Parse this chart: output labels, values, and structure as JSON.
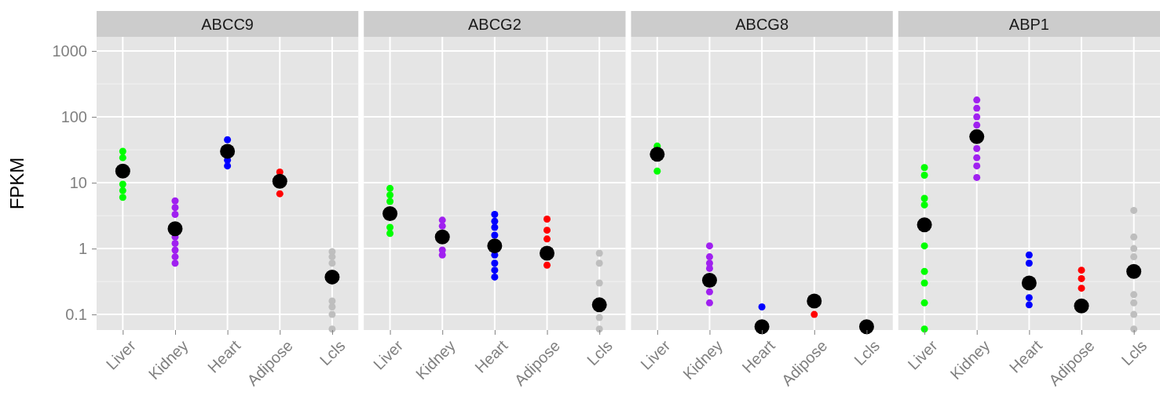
{
  "chart_data": [
    {
      "type": "scatter",
      "title": "ABCC9",
      "ylabel": "FPKM",
      "categories": [
        "Liver",
        "Kidney",
        "Heart",
        "Adipose",
        "Lcls"
      ],
      "log": true,
      "ylim": [
        0.058,
        1640
      ],
      "yticks": [
        0.1,
        1,
        10,
        100,
        1000
      ],
      "grid": true,
      "marker": "circle",
      "series": [
        {
          "color": "#00ff00",
          "x": [
            "Liver",
            "Liver",
            "Liver",
            "Liver",
            "Liver"
          ],
          "values": [
            6,
            7.6,
            9.5,
            24,
            30
          ]
        },
        {
          "color": "#a020f0",
          "x": [
            "Kidney",
            "Kidney",
            "Kidney",
            "Kidney",
            "Kidney",
            "Kidney",
            "Kidney",
            "Kidney"
          ],
          "values": [
            0.6,
            0.75,
            0.95,
            1.2,
            1.5,
            3.3,
            4.2,
            5.3
          ]
        },
        {
          "color": "#0000ff",
          "x": [
            "Heart",
            "Heart",
            "Heart"
          ],
          "values": [
            18,
            22,
            45
          ]
        },
        {
          "color": "#ff0000",
          "x": [
            "Adipose",
            "Adipose"
          ],
          "values": [
            6.8,
            14.5
          ]
        },
        {
          "color": "#bebebe",
          "x": [
            "Lcls",
            "Lcls",
            "Lcls",
            "Lcls",
            "Lcls",
            "Lcls",
            "Lcls"
          ],
          "values": [
            0.06,
            0.1,
            0.13,
            0.16,
            0.6,
            0.75,
            0.9
          ]
        },
        {
          "color": "#000000",
          "x": [
            "Liver",
            "Kidney",
            "Heart",
            "Adipose",
            "Lcls"
          ],
          "values": [
            15,
            2,
            30,
            10.5,
            0.37
          ]
        }
      ]
    },
    {
      "type": "scatter",
      "title": "ABCG2",
      "categories": [
        "Liver",
        "Kidney",
        "Heart",
        "Adipose",
        "Lcls"
      ],
      "log": true,
      "ylim": [
        0.058,
        1640
      ],
      "yticks": [
        0.1,
        1,
        10,
        100,
        1000
      ],
      "tick_labels": "x",
      "grid": true,
      "marker": "circle",
      "series": [
        {
          "color": "#00ff00",
          "x": [
            "Liver",
            "Liver",
            "Liver",
            "Liver",
            "Liver"
          ],
          "values": [
            1.7,
            2.1,
            5.2,
            6.5,
            8.2
          ]
        },
        {
          "color": "#a020f0",
          "x": [
            "Kidney",
            "Kidney",
            "Kidney",
            "Kidney"
          ],
          "values": [
            0.8,
            0.95,
            2.2,
            2.7
          ]
        },
        {
          "color": "#0000ff",
          "x": [
            "Heart",
            "Heart",
            "Heart",
            "Heart",
            "Heart",
            "Heart",
            "Heart",
            "Heart"
          ],
          "values": [
            0.37,
            0.47,
            0.6,
            0.8,
            1.6,
            2.1,
            2.6,
            3.3
          ]
        },
        {
          "color": "#ff0000",
          "x": [
            "Adipose",
            "Adipose",
            "Adipose",
            "Adipose"
          ],
          "values": [
            0.56,
            1.4,
            1.9,
            2.8
          ]
        },
        {
          "color": "#bebebe",
          "x": [
            "Lcls",
            "Lcls",
            "Lcls",
            "Lcls",
            "Lcls"
          ],
          "values": [
            0.06,
            0.09,
            0.3,
            0.6,
            0.85
          ]
        },
        {
          "color": "#000000",
          "x": [
            "Liver",
            "Kidney",
            "Heart",
            "Adipose",
            "Lcls"
          ],
          "values": [
            3.4,
            1.5,
            1.1,
            0.85,
            0.14
          ]
        }
      ]
    },
    {
      "type": "scatter",
      "title": "ABCG8",
      "categories": [
        "Liver",
        "Kidney",
        "Heart",
        "Adipose",
        "Lcls"
      ],
      "log": true,
      "ylim": [
        0.058,
        1640
      ],
      "yticks": [
        0.1,
        1,
        10,
        100,
        1000
      ],
      "tick_labels": "x",
      "grid": true,
      "marker": "circle",
      "series": [
        {
          "color": "#00ff00",
          "x": [
            "Liver",
            "Liver"
          ],
          "values": [
            15,
            36
          ]
        },
        {
          "color": "#a020f0",
          "x": [
            "Kidney",
            "Kidney",
            "Kidney",
            "Kidney",
            "Kidney",
            "Kidney"
          ],
          "values": [
            0.15,
            0.22,
            0.5,
            0.6,
            0.75,
            1.1
          ]
        },
        {
          "color": "#0000ff",
          "x": [
            "Heart"
          ],
          "values": [
            0.13
          ]
        },
        {
          "color": "#ff0000",
          "x": [
            "Adipose"
          ],
          "values": [
            0.1
          ]
        },
        {
          "color": "#000000",
          "x": [
            "Liver",
            "Kidney",
            "Heart",
            "Adipose",
            "Lcls"
          ],
          "values": [
            27,
            0.33,
            0.065,
            0.16,
            0.065
          ]
        }
      ]
    },
    {
      "type": "scatter",
      "title": "ABP1",
      "categories": [
        "Liver",
        "Kidney",
        "Heart",
        "Adipose",
        "Lcls"
      ],
      "log": true,
      "ylim": [
        0.058,
        1640
      ],
      "yticks": [
        0.1,
        1,
        10,
        100,
        1000
      ],
      "tick_labels": "x",
      "grid": true,
      "marker": "circle",
      "series": [
        {
          "color": "#00ff00",
          "x": [
            "Liver",
            "Liver",
            "Liver",
            "Liver",
            "Liver",
            "Liver",
            "Liver",
            "Liver",
            "Liver"
          ],
          "values": [
            0.06,
            0.15,
            0.3,
            0.45,
            1.1,
            4.6,
            5.8,
            13,
            17
          ]
        },
        {
          "color": "#a020f0",
          "x": [
            "Kidney",
            "Kidney",
            "Kidney",
            "Kidney",
            "Kidney",
            "Kidney",
            "Kidney",
            "Kidney"
          ],
          "values": [
            12,
            18,
            24,
            33,
            75,
            100,
            135,
            180
          ]
        },
        {
          "color": "#0000ff",
          "x": [
            "Heart",
            "Heart",
            "Heart",
            "Heart"
          ],
          "values": [
            0.14,
            0.18,
            0.6,
            0.8
          ]
        },
        {
          "color": "#ff0000",
          "x": [
            "Adipose",
            "Adipose",
            "Adipose"
          ],
          "values": [
            0.25,
            0.35,
            0.47
          ]
        },
        {
          "color": "#bebebe",
          "x": [
            "Lcls",
            "Lcls",
            "Lcls",
            "Lcls",
            "Lcls",
            "Lcls",
            "Lcls",
            "Lcls"
          ],
          "values": [
            0.06,
            0.1,
            0.15,
            0.2,
            0.75,
            1,
            1.5,
            3.8
          ]
        },
        {
          "color": "#000000",
          "x": [
            "Liver",
            "Kidney",
            "Heart",
            "Adipose",
            "Lcls"
          ],
          "values": [
            2.3,
            50,
            0.3,
            0.135,
            0.45
          ]
        }
      ]
    }
  ]
}
